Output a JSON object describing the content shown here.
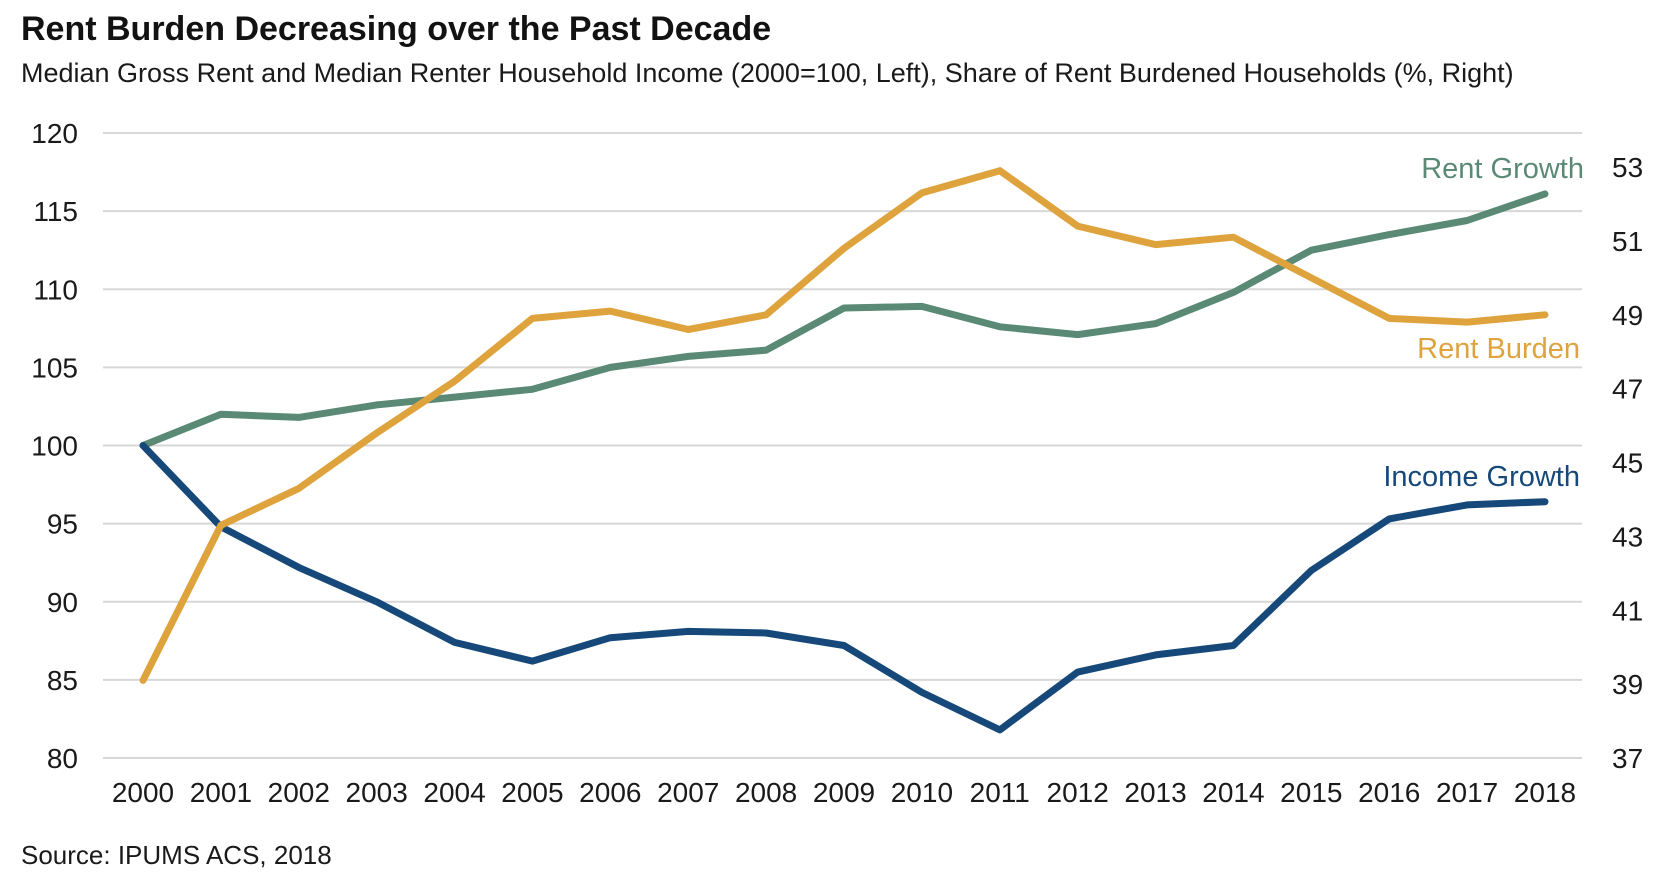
{
  "header": {
    "title": "Rent Burden Decreasing over the Past Decade",
    "subtitle": "Median Gross Rent and Median Renter Household Income (2000=100, Left), Share of Rent Burdened Households (%, Right)"
  },
  "source_note": "Source: IPUMS ACS, 2018",
  "colors": {
    "rent_growth": "#5a8a76",
    "income_growth": "#16497a",
    "rent_burden": "#dfa33e",
    "gridline": "#d7d7d7",
    "axis_text": "#1a1a1a",
    "title_text": "#121212"
  },
  "chart_data": {
    "type": "line",
    "title": "Rent Burden Decreasing over the Past Decade",
    "subtitle": "Median Gross Rent and Median Renter Household Income (2000=100, Left), Share of Rent Burdened Households (%, Right)",
    "grid": true,
    "legend_position": "inline-right",
    "x": [
      2000,
      2001,
      2002,
      2003,
      2004,
      2005,
      2006,
      2007,
      2008,
      2009,
      2010,
      2011,
      2012,
      2013,
      2014,
      2015,
      2016,
      2017,
      2018
    ],
    "left_axis": {
      "description": "Index (2000=100)",
      "range": [
        80,
        120
      ],
      "ticks": [
        80,
        85,
        90,
        95,
        100,
        105,
        110,
        115,
        120
      ]
    },
    "right_axis": {
      "description": "Share of Rent Burdened Households (%)",
      "range": [
        37,
        53
      ],
      "ticks": [
        37,
        39,
        41,
        43,
        45,
        47,
        49,
        51,
        53
      ]
    },
    "series": [
      {
        "name": "Rent Growth",
        "axis": "left",
        "color": "#5a8a76",
        "values": [
          100,
          102.0,
          101.8,
          102.6,
          103.1,
          103.6,
          105.0,
          105.7,
          106.1,
          108.8,
          108.9,
          107.6,
          107.1,
          107.8,
          109.8,
          112.5,
          113.5,
          114.4,
          116.1
        ]
      },
      {
        "name": "Income Growth",
        "axis": "left",
        "color": "#16497a",
        "values": [
          100,
          94.8,
          92.2,
          90.0,
          87.4,
          86.2,
          87.7,
          88.1,
          88.0,
          87.2,
          84.2,
          81.8,
          85.5,
          86.6,
          87.2,
          92.0,
          95.3,
          96.2,
          96.4
        ]
      },
      {
        "name": "Rent Burden",
        "axis": "right",
        "color": "#dfa33e",
        "values": [
          39.1,
          43.3,
          44.3,
          45.8,
          47.2,
          48.9,
          49.1,
          48.6,
          49.0,
          50.8,
          52.3,
          52.9,
          51.4,
          50.9,
          51.1,
          50.0,
          48.9,
          48.8,
          49.0
        ]
      }
    ]
  }
}
